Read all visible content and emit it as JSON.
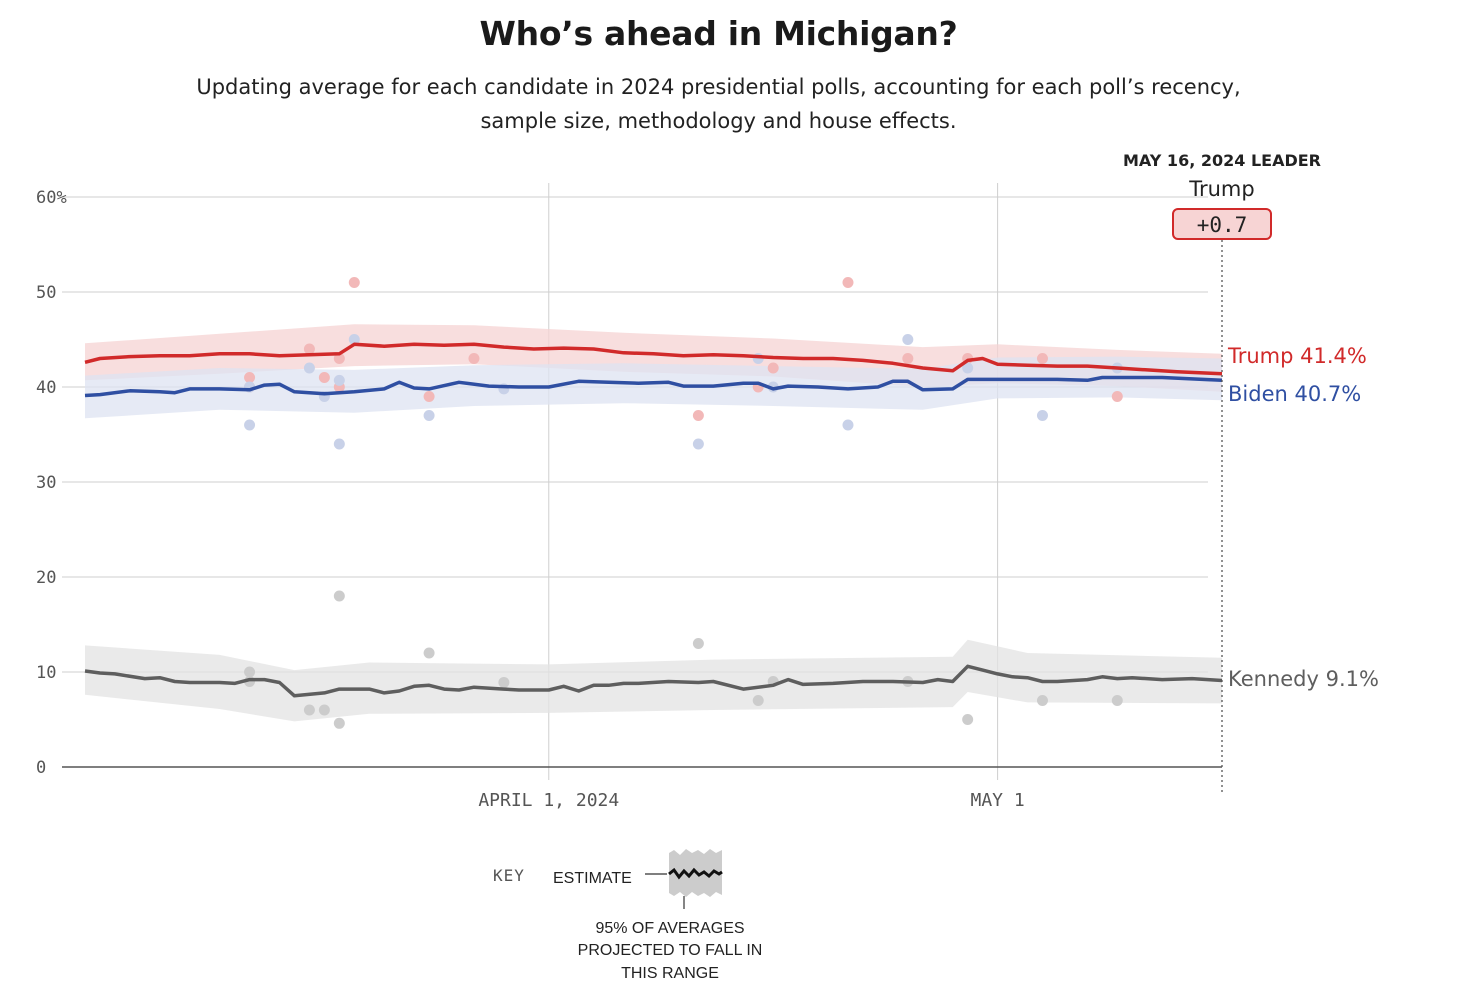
{
  "header": {
    "title": "Who’s ahead in Michigan?",
    "subtitle_line1": "Updating average for each candidate in 2024 presidential polls, accounting for each poll’s recency,",
    "subtitle_line2": "sample size, methodology and house effects."
  },
  "leader": {
    "date_label": "MAY 16, 2024 LEADER",
    "name": "Trump",
    "margin": "+0.7",
    "color": "#d12a2a",
    "badge_fill": "#f7d4d4"
  },
  "key": {
    "label": "KEY",
    "estimate_label": "ESTIMATE",
    "range_line1": "95% OF AVERAGES",
    "range_line2": "PROJECTED TO FALL IN",
    "range_line3": "THIS RANGE"
  },
  "chart_data": {
    "type": "line",
    "x_start": "2024-03-01",
    "x_end": "2024-05-16",
    "ylim": [
      0,
      60
    ],
    "y_ticks": [
      0,
      10,
      20,
      30,
      40,
      50,
      60
    ],
    "y_tick_labels": [
      "0",
      "10",
      "20",
      "30",
      "40",
      "50",
      "60%"
    ],
    "x_ticks": [
      {
        "date": "2024-04-01",
        "label": "APRIL 1, 2024"
      },
      {
        "date": "2024-05-01",
        "label": "MAY 1"
      }
    ],
    "grid": true,
    "series": [
      {
        "name": "Trump",
        "end_label": "Trump 41.4%",
        "color": "#d12a2a",
        "band_color": "#f6d3d3",
        "dot_color": "#f2b8b8",
        "points": [
          [
            "2024-03-01",
            42.6
          ],
          [
            "2024-03-02",
            43.0
          ],
          [
            "2024-03-04",
            43.2
          ],
          [
            "2024-03-06",
            43.3
          ],
          [
            "2024-03-08",
            43.3
          ],
          [
            "2024-03-10",
            43.5
          ],
          [
            "2024-03-12",
            43.5
          ],
          [
            "2024-03-14",
            43.3
          ],
          [
            "2024-03-16",
            43.4
          ],
          [
            "2024-03-18",
            43.5
          ],
          [
            "2024-03-19",
            44.5
          ],
          [
            "2024-03-21",
            44.3
          ],
          [
            "2024-03-23",
            44.5
          ],
          [
            "2024-03-25",
            44.4
          ],
          [
            "2024-03-27",
            44.5
          ],
          [
            "2024-03-29",
            44.2
          ],
          [
            "2024-03-31",
            44.0
          ],
          [
            "2024-04-02",
            44.1
          ],
          [
            "2024-04-04",
            44.0
          ],
          [
            "2024-04-06",
            43.6
          ],
          [
            "2024-04-08",
            43.5
          ],
          [
            "2024-04-10",
            43.3
          ],
          [
            "2024-04-12",
            43.4
          ],
          [
            "2024-04-14",
            43.3
          ],
          [
            "2024-04-16",
            43.1
          ],
          [
            "2024-04-18",
            43.0
          ],
          [
            "2024-04-20",
            43.0
          ],
          [
            "2024-04-22",
            42.8
          ],
          [
            "2024-04-24",
            42.5
          ],
          [
            "2024-04-26",
            42.0
          ],
          [
            "2024-04-28",
            41.7
          ],
          [
            "2024-04-29",
            42.8
          ],
          [
            "2024-04-30",
            43.0
          ],
          [
            "2024-05-01",
            42.4
          ],
          [
            "2024-05-03",
            42.3
          ],
          [
            "2024-05-05",
            42.2
          ],
          [
            "2024-05-07",
            42.2
          ],
          [
            "2024-05-09",
            42.0
          ],
          [
            "2024-05-11",
            41.8
          ],
          [
            "2024-05-13",
            41.6
          ],
          [
            "2024-05-16",
            41.4
          ]
        ],
        "upper": [
          [
            "2024-03-01",
            44.6
          ],
          [
            "2024-03-10",
            45.6
          ],
          [
            "2024-03-19",
            46.6
          ],
          [
            "2024-03-27",
            46.5
          ],
          [
            "2024-04-06",
            45.7
          ],
          [
            "2024-04-16",
            45.1
          ],
          [
            "2024-04-26",
            44.2
          ],
          [
            "2024-05-01",
            44.5
          ],
          [
            "2024-05-09",
            43.9
          ],
          [
            "2024-05-16",
            43.5
          ]
        ],
        "lower": [
          [
            "2024-03-01",
            40.7
          ],
          [
            "2024-03-10",
            41.4
          ],
          [
            "2024-03-19",
            42.2
          ],
          [
            "2024-03-27",
            42.4
          ],
          [
            "2024-04-06",
            41.6
          ],
          [
            "2024-04-16",
            41.1
          ],
          [
            "2024-04-26",
            40.0
          ],
          [
            "2024-05-01",
            40.4
          ],
          [
            "2024-05-09",
            40.1
          ],
          [
            "2024-05-16",
            39.5
          ]
        ],
        "polls": [
          [
            "2024-03-12",
            41
          ],
          [
            "2024-03-12",
            40
          ],
          [
            "2024-03-16",
            44
          ],
          [
            "2024-03-17",
            41
          ],
          [
            "2024-03-18",
            43
          ],
          [
            "2024-03-18",
            40
          ],
          [
            "2024-03-19",
            51
          ],
          [
            "2024-03-24",
            39
          ],
          [
            "2024-03-27",
            43
          ],
          [
            "2024-04-11",
            37
          ],
          [
            "2024-04-15",
            40
          ],
          [
            "2024-04-16",
            42
          ],
          [
            "2024-04-21",
            51
          ],
          [
            "2024-04-25",
            43
          ],
          [
            "2024-04-29",
            43
          ],
          [
            "2024-05-04",
            43
          ],
          [
            "2024-05-09",
            39
          ]
        ]
      },
      {
        "name": "Biden",
        "end_label": "Biden 40.7%",
        "color": "#2f4fa2",
        "band_color": "#dde3f2",
        "dot_color": "#c8d1e8",
        "points": [
          [
            "2024-03-01",
            39.1
          ],
          [
            "2024-03-02",
            39.2
          ],
          [
            "2024-03-04",
            39.6
          ],
          [
            "2024-03-06",
            39.5
          ],
          [
            "2024-03-07",
            39.4
          ],
          [
            "2024-03-08",
            39.8
          ],
          [
            "2024-03-10",
            39.8
          ],
          [
            "2024-03-12",
            39.7
          ],
          [
            "2024-03-13",
            40.2
          ],
          [
            "2024-03-14",
            40.3
          ],
          [
            "2024-03-15",
            39.5
          ],
          [
            "2024-03-17",
            39.3
          ],
          [
            "2024-03-19",
            39.5
          ],
          [
            "2024-03-21",
            39.8
          ],
          [
            "2024-03-22",
            40.5
          ],
          [
            "2024-03-23",
            39.9
          ],
          [
            "2024-03-24",
            39.8
          ],
          [
            "2024-03-26",
            40.5
          ],
          [
            "2024-03-28",
            40.1
          ],
          [
            "2024-03-30",
            40.0
          ],
          [
            "2024-04-01",
            40.0
          ],
          [
            "2024-04-03",
            40.6
          ],
          [
            "2024-04-05",
            40.5
          ],
          [
            "2024-04-07",
            40.4
          ],
          [
            "2024-04-09",
            40.5
          ],
          [
            "2024-04-10",
            40.1
          ],
          [
            "2024-04-12",
            40.1
          ],
          [
            "2024-04-14",
            40.4
          ],
          [
            "2024-04-15",
            40.4
          ],
          [
            "2024-04-16",
            39.8
          ],
          [
            "2024-04-17",
            40.1
          ],
          [
            "2024-04-19",
            40.0
          ],
          [
            "2024-04-21",
            39.8
          ],
          [
            "2024-04-23",
            40.0
          ],
          [
            "2024-04-24",
            40.6
          ],
          [
            "2024-04-25",
            40.6
          ],
          [
            "2024-04-26",
            39.7
          ],
          [
            "2024-04-28",
            39.8
          ],
          [
            "2024-04-29",
            40.8
          ],
          [
            "2024-05-01",
            40.8
          ],
          [
            "2024-05-05",
            40.8
          ],
          [
            "2024-05-07",
            40.7
          ],
          [
            "2024-05-08",
            41.0
          ],
          [
            "2024-05-12",
            41.0
          ],
          [
            "2024-05-16",
            40.7
          ]
        ],
        "upper": [
          [
            "2024-03-01",
            41.2
          ],
          [
            "2024-03-10",
            42.0
          ],
          [
            "2024-03-19",
            41.8
          ],
          [
            "2024-03-27",
            42.3
          ],
          [
            "2024-04-06",
            42.5
          ],
          [
            "2024-04-16",
            42.2
          ],
          [
            "2024-04-26",
            41.9
          ],
          [
            "2024-05-01",
            43.1
          ],
          [
            "2024-05-09",
            43.2
          ],
          [
            "2024-05-16",
            43.0
          ]
        ],
        "lower": [
          [
            "2024-03-01",
            36.7
          ],
          [
            "2024-03-10",
            37.6
          ],
          [
            "2024-03-19",
            37.3
          ],
          [
            "2024-03-27",
            38.0
          ],
          [
            "2024-04-06",
            38.3
          ],
          [
            "2024-04-16",
            38.0
          ],
          [
            "2024-04-26",
            37.6
          ],
          [
            "2024-05-01",
            38.8
          ],
          [
            "2024-05-09",
            38.9
          ],
          [
            "2024-05-16",
            38.6
          ]
        ],
        "polls": [
          [
            "2024-03-12",
            36
          ],
          [
            "2024-03-12",
            40
          ],
          [
            "2024-03-16",
            42
          ],
          [
            "2024-03-17",
            39
          ],
          [
            "2024-03-18",
            34
          ],
          [
            "2024-03-18",
            40.7
          ],
          [
            "2024-03-19",
            45
          ],
          [
            "2024-03-24",
            37
          ],
          [
            "2024-03-29",
            39.8
          ],
          [
            "2024-04-11",
            34
          ],
          [
            "2024-04-15",
            43
          ],
          [
            "2024-04-16",
            40
          ],
          [
            "2024-04-21",
            36
          ],
          [
            "2024-04-25",
            45
          ],
          [
            "2024-04-29",
            42
          ],
          [
            "2024-05-04",
            37
          ],
          [
            "2024-05-09",
            42
          ]
        ]
      },
      {
        "name": "Kennedy",
        "end_label": "Kennedy 9.1%",
        "color": "#5e5e5e",
        "band_color": "#e3e3e3",
        "dot_color": "#cccccc",
        "points": [
          [
            "2024-03-01",
            10.1
          ],
          [
            "2024-03-02",
            9.9
          ],
          [
            "2024-03-03",
            9.8
          ],
          [
            "2024-03-05",
            9.3
          ],
          [
            "2024-03-06",
            9.4
          ],
          [
            "2024-03-07",
            9.0
          ],
          [
            "2024-03-08",
            8.9
          ],
          [
            "2024-03-10",
            8.9
          ],
          [
            "2024-03-11",
            8.8
          ],
          [
            "2024-03-12",
            9.2
          ],
          [
            "2024-03-13",
            9.2
          ],
          [
            "2024-03-14",
            8.9
          ],
          [
            "2024-03-15",
            7.5
          ],
          [
            "2024-03-17",
            7.8
          ],
          [
            "2024-03-18",
            8.2
          ],
          [
            "2024-03-20",
            8.2
          ],
          [
            "2024-03-21",
            7.8
          ],
          [
            "2024-03-22",
            8.0
          ],
          [
            "2024-03-23",
            8.5
          ],
          [
            "2024-03-24",
            8.6
          ],
          [
            "2024-03-25",
            8.2
          ],
          [
            "2024-03-26",
            8.1
          ],
          [
            "2024-03-27",
            8.4
          ],
          [
            "2024-03-29",
            8.2
          ],
          [
            "2024-03-30",
            8.1
          ],
          [
            "2024-04-01",
            8.1
          ],
          [
            "2024-04-02",
            8.5
          ],
          [
            "2024-04-03",
            8.0
          ],
          [
            "2024-04-04",
            8.6
          ],
          [
            "2024-04-05",
            8.6
          ],
          [
            "2024-04-06",
            8.8
          ],
          [
            "2024-04-07",
            8.8
          ],
          [
            "2024-04-09",
            9.0
          ],
          [
            "2024-04-11",
            8.9
          ],
          [
            "2024-04-12",
            9.0
          ],
          [
            "2024-04-14",
            8.2
          ],
          [
            "2024-04-16",
            8.6
          ],
          [
            "2024-04-17",
            9.2
          ],
          [
            "2024-04-18",
            8.7
          ],
          [
            "2024-04-20",
            8.8
          ],
          [
            "2024-04-22",
            9.0
          ],
          [
            "2024-04-24",
            9.0
          ],
          [
            "2024-04-26",
            8.9
          ],
          [
            "2024-04-27",
            9.2
          ],
          [
            "2024-04-28",
            9.0
          ],
          [
            "2024-04-29",
            10.6
          ],
          [
            "2024-04-30",
            10.2
          ],
          [
            "2024-05-01",
            9.8
          ],
          [
            "2024-05-02",
            9.5
          ],
          [
            "2024-05-03",
            9.4
          ],
          [
            "2024-05-04",
            9.0
          ],
          [
            "2024-05-05",
            9.0
          ],
          [
            "2024-05-07",
            9.2
          ],
          [
            "2024-05-08",
            9.5
          ],
          [
            "2024-05-09",
            9.3
          ],
          [
            "2024-05-10",
            9.4
          ],
          [
            "2024-05-12",
            9.2
          ],
          [
            "2024-05-14",
            9.3
          ],
          [
            "2024-05-16",
            9.1
          ]
        ],
        "upper": [
          [
            "2024-03-01",
            12.8
          ],
          [
            "2024-03-10",
            11.8
          ],
          [
            "2024-03-15",
            10.2
          ],
          [
            "2024-03-20",
            11.0
          ],
          [
            "2024-04-01",
            10.8
          ],
          [
            "2024-04-12",
            11.3
          ],
          [
            "2024-04-28",
            11.6
          ],
          [
            "2024-04-29",
            13.4
          ],
          [
            "2024-05-03",
            12.0
          ],
          [
            "2024-05-16",
            11.5
          ]
        ],
        "lower": [
          [
            "2024-03-01",
            7.6
          ],
          [
            "2024-03-10",
            6.1
          ],
          [
            "2024-03-15",
            4.8
          ],
          [
            "2024-03-20",
            5.6
          ],
          [
            "2024-04-01",
            5.7
          ],
          [
            "2024-04-12",
            6.0
          ],
          [
            "2024-04-28",
            6.3
          ],
          [
            "2024-04-29",
            7.9
          ],
          [
            "2024-05-03",
            6.8
          ],
          [
            "2024-05-16",
            6.7
          ]
        ],
        "polls": [
          [
            "2024-03-12",
            10
          ],
          [
            "2024-03-12",
            9
          ],
          [
            "2024-03-16",
            6
          ],
          [
            "2024-03-17",
            6
          ],
          [
            "2024-03-18",
            18
          ],
          [
            "2024-03-18",
            4.6
          ],
          [
            "2024-03-24",
            12
          ],
          [
            "2024-03-29",
            8.9
          ],
          [
            "2024-04-11",
            13
          ],
          [
            "2024-04-15",
            7
          ],
          [
            "2024-04-16",
            9
          ],
          [
            "2024-04-25",
            9
          ],
          [
            "2024-04-29",
            5
          ],
          [
            "2024-05-04",
            7
          ],
          [
            "2024-05-09",
            7
          ]
        ]
      }
    ]
  }
}
